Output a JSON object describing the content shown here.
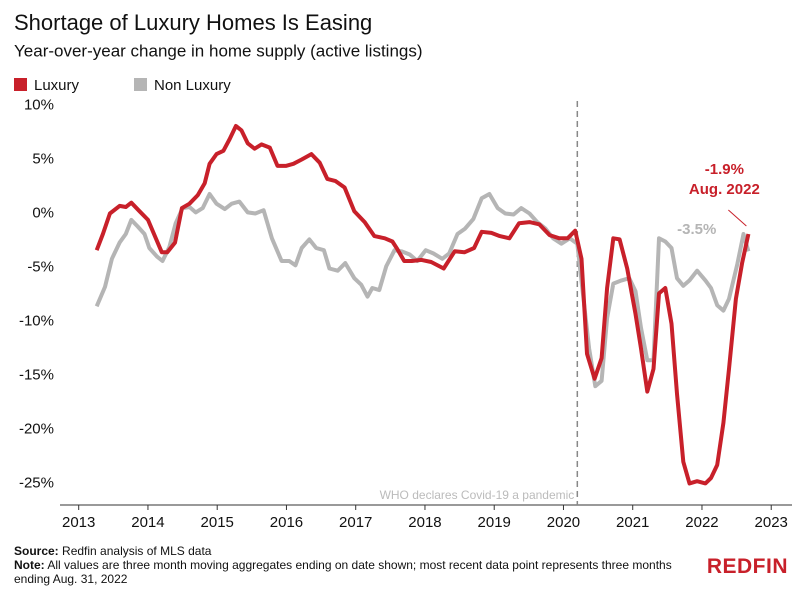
{
  "chart_data": {
    "type": "line",
    "title": "Shortage of Luxury Homes Is Easing",
    "subtitle": "Year-over-year change in home supply (active listings)",
    "xlim": [
      2012.73,
      2023.3
    ],
    "ylim": [
      -27,
      10.6
    ],
    "xticks": [
      2013,
      2014,
      2015,
      2016,
      2017,
      2018,
      2019,
      2020,
      2021,
      2022,
      2023
    ],
    "yticks": [
      {
        "value": 10,
        "label": "10%"
      },
      {
        "value": 5,
        "label": "5%"
      },
      {
        "value": 0,
        "label": "0%"
      },
      {
        "value": -5,
        "label": "-5%"
      },
      {
        "value": -10,
        "label": "-10%"
      },
      {
        "value": -15,
        "label": "-15%"
      },
      {
        "value": -20,
        "label": "-20%"
      },
      {
        "value": -25,
        "label": "-25%"
      }
    ],
    "grid": false,
    "legend": "top-left",
    "event_line": {
      "x": 2020.2,
      "label": "WHO declares Covid-19 a pandemic"
    },
    "annotations": [
      {
        "series": 0,
        "lines": [
          "-1.9%",
          "Aug. 2022"
        ]
      },
      {
        "series": 1,
        "lines": [
          "-3.5%"
        ]
      }
    ],
    "series": [
      {
        "name": "Luxury",
        "color": "#c8202a",
        "x": [
          2013.26,
          2013.35,
          2013.45,
          2013.59,
          2013.68,
          2013.76,
          2013.88,
          2014.0,
          2014.1,
          2014.2,
          2014.28,
          2014.39,
          2014.49,
          2014.6,
          2014.72,
          2014.82,
          2014.89,
          2014.99,
          2015.09,
          2015.18,
          2015.27,
          2015.35,
          2015.44,
          2015.54,
          2015.64,
          2015.76,
          2015.87,
          2015.99,
          2016.1,
          2016.22,
          2016.36,
          2016.48,
          2016.59,
          2016.71,
          2016.84,
          2016.98,
          2017.13,
          2017.27,
          2017.42,
          2017.53,
          2017.6,
          2017.7,
          2017.81,
          2017.95,
          2018.09,
          2018.27,
          2018.43,
          2018.57,
          2018.71,
          2018.82,
          2018.96,
          2019.08,
          2019.22,
          2019.36,
          2019.51,
          2019.65,
          2019.8,
          2019.94,
          2020.06,
          2020.17,
          2020.26,
          2020.34,
          2020.45,
          2020.55,
          2020.63,
          2020.72,
          2020.81,
          2020.92,
          2021.04,
          2021.12,
          2021.21,
          2021.3,
          2021.38,
          2021.47,
          2021.56,
          2021.64,
          2021.73,
          2021.82,
          2021.93,
          2022.05,
          2022.13,
          2022.22,
          2022.31,
          2022.39,
          2022.49,
          2022.58,
          2022.67
        ],
        "values": [
          -3.4,
          -1.9,
          0,
          0.7,
          0.6,
          1.0,
          0.2,
          -0.6,
          -2.1,
          -3.6,
          -3.6,
          -2.7,
          0.5,
          0.9,
          1.7,
          2.8,
          4.6,
          5.5,
          5.8,
          6.9,
          8.1,
          7.7,
          6.5,
          6.0,
          6.4,
          6.1,
          4.4,
          4.4,
          4.6,
          5.0,
          5.5,
          4.7,
          3.2,
          3.0,
          2.4,
          0.2,
          -0.8,
          -2.1,
          -2.3,
          -2.6,
          -3.3,
          -4.4,
          -4.4,
          -4.3,
          -4.5,
          -5.1,
          -3.5,
          -3.6,
          -3.2,
          -1.7,
          -1.8,
          -2.1,
          -2.3,
          -0.9,
          -0.8,
          -1.0,
          -2.0,
          -2.3,
          -2.3,
          -1.6,
          -4.2,
          -13,
          -15.3,
          -13.4,
          -6.9,
          -2.3,
          -2.4,
          -5.1,
          -9.3,
          -12.5,
          -16.5,
          -14.4,
          -7.4,
          -6.9,
          -10.2,
          -16.7,
          -23,
          -25,
          -24.8,
          -25,
          -24.5,
          -23.3,
          -19.4,
          -14.4,
          -7.9,
          -4.6,
          -1.9
        ]
      },
      {
        "name": "Non Luxury",
        "color": "#b5b5b5",
        "x": [
          2013.26,
          2013.38,
          2013.48,
          2013.59,
          2013.68,
          2013.76,
          2013.85,
          2013.95,
          2014.02,
          2014.13,
          2014.21,
          2014.31,
          2014.4,
          2014.5,
          2014.6,
          2014.69,
          2014.79,
          2014.89,
          2014.99,
          2015.11,
          2015.21,
          2015.32,
          2015.44,
          2015.55,
          2015.67,
          2015.79,
          2015.93,
          2016.04,
          2016.13,
          2016.22,
          2016.33,
          2016.43,
          2016.54,
          2016.62,
          2016.74,
          2016.85,
          2016.98,
          2017.08,
          2017.17,
          2017.24,
          2017.34,
          2017.44,
          2017.56,
          2017.66,
          2017.78,
          2017.89,
          2018.01,
          2018.12,
          2018.25,
          2018.35,
          2018.47,
          2018.58,
          2018.7,
          2018.82,
          2018.93,
          2019.05,
          2019.16,
          2019.28,
          2019.39,
          2019.51,
          2019.62,
          2019.74,
          2019.85,
          2019.97,
          2020.09,
          2020.2,
          2020.29,
          2020.37,
          2020.46,
          2020.55,
          2020.63,
          2020.72,
          2020.84,
          2020.95,
          2021.04,
          2021.12,
          2021.21,
          2021.3,
          2021.38,
          2021.47,
          2021.56,
          2021.64,
          2021.73,
          2021.82,
          2021.93,
          2022.05,
          2022.13,
          2022.22,
          2022.31,
          2022.39,
          2022.51,
          2022.6,
          2022.67
        ],
        "values": [
          -8.6,
          -6.8,
          -4.2,
          -2.7,
          -1.9,
          -0.6,
          -1.2,
          -1.9,
          -3.2,
          -4.0,
          -4.4,
          -3.1,
          -0.9,
          0.5,
          0.6,
          0.1,
          0.5,
          1.8,
          0.9,
          0.4,
          0.9,
          1.1,
          0.1,
          0,
          0.3,
          -2.3,
          -4.4,
          -4.4,
          -4.8,
          -3.2,
          -2.4,
          -3.2,
          -3.4,
          -5.1,
          -5.3,
          -4.6,
          -6.0,
          -6.6,
          -7.7,
          -6.9,
          -7.1,
          -4.9,
          -3.4,
          -3.5,
          -3.8,
          -4.4,
          -3.4,
          -3.7,
          -4.2,
          -3.7,
          -1.9,
          -1.4,
          -0.5,
          1.4,
          1.8,
          0.5,
          0,
          -0.1,
          0.5,
          0,
          -0.8,
          -1.4,
          -2.3,
          -2.8,
          -2.3,
          -2.8,
          -7.9,
          -12.5,
          -16,
          -15.5,
          -9.7,
          -6.5,
          -6.2,
          -6.0,
          -7.2,
          -10.6,
          -13.6,
          -13.6,
          -2.3,
          -2.6,
          -3.2,
          -6.0,
          -6.7,
          -6.2,
          -5.3,
          -6.2,
          -6.9,
          -8.5,
          -9.0,
          -7.9,
          -4.7,
          -1.9,
          -3.5
        ]
      }
    ]
  },
  "footer": {
    "source_label": "Source:",
    "source": "Redfin analysis of MLS data",
    "note_label": "Note:",
    "note": "All values are three month moving aggregates ending on date shown; most recent data point represents three months ending Aug. 31, 2022",
    "logo": "REDFIN"
  }
}
